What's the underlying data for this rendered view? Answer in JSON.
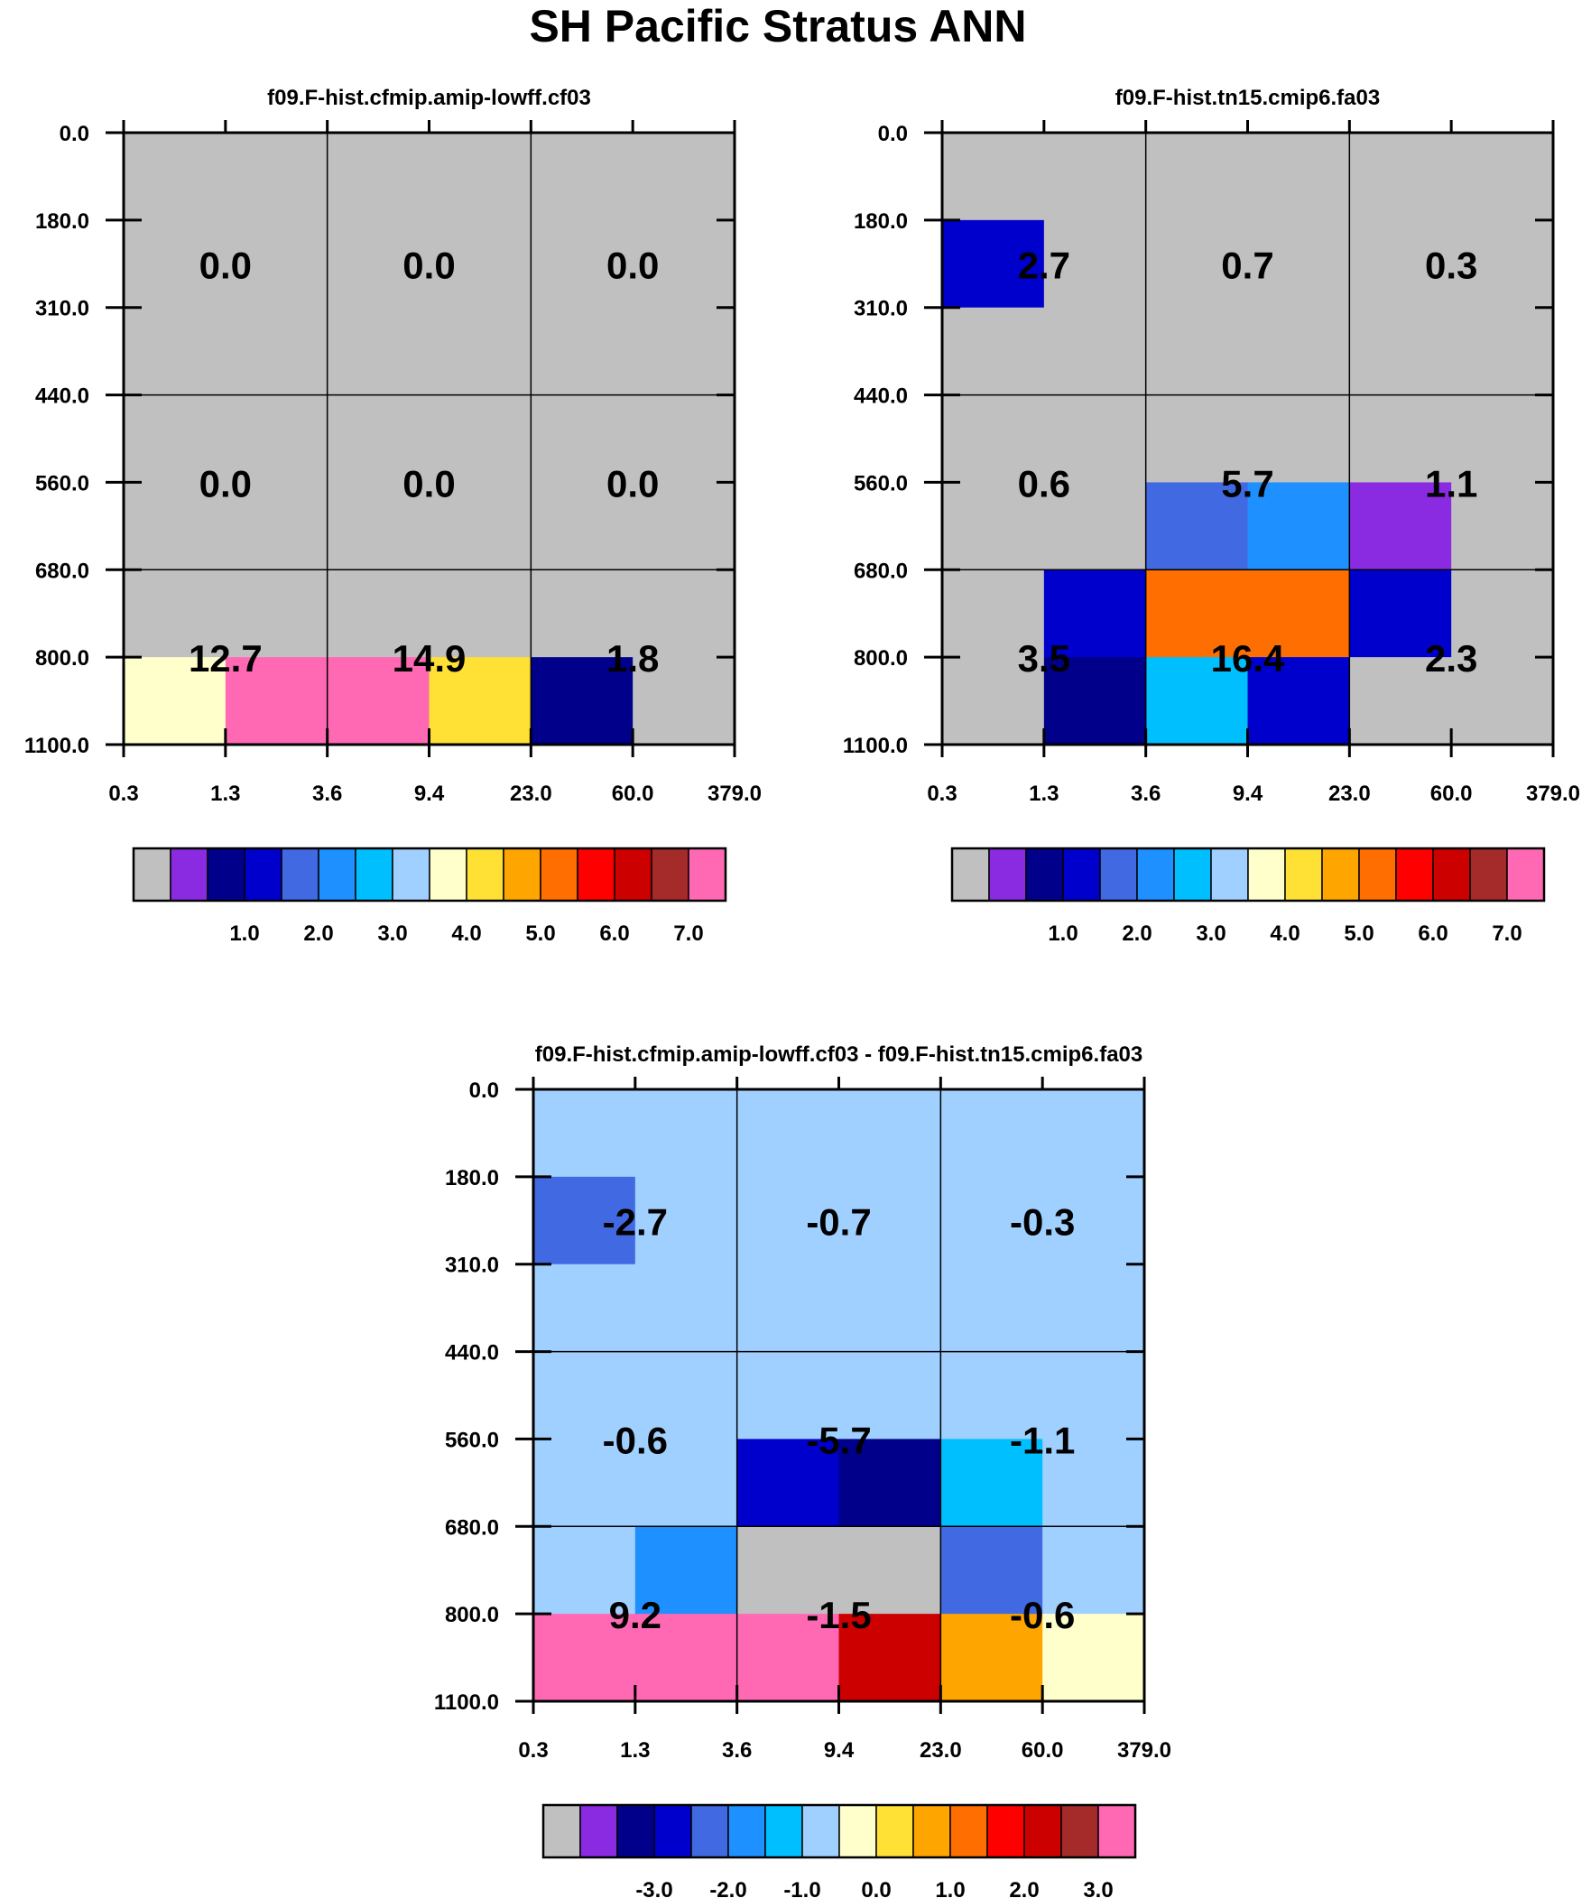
{
  "figure": {
    "title": "SH Pacific Stratus ANN"
  },
  "chart_data": [
    {
      "type": "heatmap",
      "title": "f09.F-hist.cfmip.amip-lowff.cf03",
      "y_ticks": [
        "0.0",
        "180.0",
        "310.0",
        "440.0",
        "560.0",
        "680.0",
        "800.0",
        "1100.0"
      ],
      "x_ticks": [
        "0.3",
        "1.3",
        "3.6",
        "9.4",
        "23.0",
        "60.0",
        "379.0"
      ],
      "cell_values": [
        [
          "0.0",
          "0.0",
          "0.0"
        ],
        [
          "0.0",
          "0.0",
          "0.0"
        ],
        [
          "12.7",
          "14.9",
          "1.8"
        ]
      ],
      "fine_color_index": [
        [
          0,
          0,
          0,
          0,
          0,
          0
        ],
        [
          0,
          0,
          0,
          0,
          0,
          0
        ],
        [
          0,
          0,
          0,
          0,
          0,
          0
        ],
        [
          0,
          0,
          0,
          0,
          0,
          0
        ],
        [
          0,
          0,
          0,
          0,
          0,
          0
        ],
        [
          0,
          0,
          0,
          0,
          0,
          0
        ],
        [
          8,
          15,
          15,
          9,
          2,
          0
        ]
      ],
      "colorbar_labels": [
        "1.0",
        "2.0",
        "3.0",
        "4.0",
        "5.0",
        "6.0",
        "7.0"
      ]
    },
    {
      "type": "heatmap",
      "title": "f09.F-hist.tn15.cmip6.fa03",
      "y_ticks": [
        "0.0",
        "180.0",
        "310.0",
        "440.0",
        "560.0",
        "680.0",
        "800.0",
        "1100.0"
      ],
      "x_ticks": [
        "0.3",
        "1.3",
        "3.6",
        "9.4",
        "23.0",
        "60.0",
        "379.0"
      ],
      "cell_values": [
        [
          "2.7",
          "0.7",
          "0.3"
        ],
        [
          "0.6",
          "5.7",
          "1.1"
        ],
        [
          "3.5",
          "16.4",
          "2.3"
        ]
      ],
      "fine_color_index": [
        [
          0,
          0,
          0,
          0,
          0,
          0
        ],
        [
          3,
          0,
          0,
          0,
          0,
          0
        ],
        [
          0,
          0,
          0,
          0,
          0,
          0
        ],
        [
          0,
          0,
          0,
          0,
          0,
          0
        ],
        [
          0,
          0,
          4,
          5,
          1,
          0
        ],
        [
          0,
          3,
          11,
          11,
          3,
          0
        ],
        [
          0,
          2,
          6,
          3,
          0,
          0
        ]
      ],
      "colorbar_labels": [
        "1.0",
        "2.0",
        "3.0",
        "4.0",
        "5.0",
        "6.0",
        "7.0"
      ]
    },
    {
      "type": "heatmap",
      "title": "f09.F-hist.cfmip.amip-lowff.cf03 - f09.F-hist.tn15.cmip6.fa03",
      "y_ticks": [
        "0.0",
        "180.0",
        "310.0",
        "440.0",
        "560.0",
        "680.0",
        "800.0",
        "1100.0"
      ],
      "x_ticks": [
        "0.3",
        "1.3",
        "3.6",
        "9.4",
        "23.0",
        "60.0",
        "379.0"
      ],
      "cell_values": [
        [
          "-2.7",
          "-0.7",
          "-0.3"
        ],
        [
          "-0.6",
          "-5.7",
          "-1.1"
        ],
        [
          "9.2",
          "-1.5",
          "-0.6"
        ]
      ],
      "fine_color_index": [
        [
          7,
          7,
          7,
          7,
          7,
          7
        ],
        [
          4,
          7,
          7,
          7,
          7,
          7
        ],
        [
          7,
          7,
          7,
          7,
          7,
          7
        ],
        [
          7,
          7,
          7,
          7,
          7,
          7
        ],
        [
          7,
          7,
          3,
          2,
          6,
          7
        ],
        [
          7,
          5,
          0,
          0,
          4,
          7
        ],
        [
          15,
          15,
          15,
          13,
          10,
          8
        ]
      ],
      "colorbar_labels": [
        "-3.0",
        "-2.0",
        "-1.0",
        "0.0",
        "1.0",
        "2.0",
        "3.0"
      ]
    }
  ],
  "palette": [
    "#c0c0c0",
    "#8a2be2",
    "#00008b",
    "#0000cd",
    "#4169e1",
    "#1e90ff",
    "#00bfff",
    "#a0d0ff",
    "#ffffcc",
    "#ffe135",
    "#ffa500",
    "#ff6e00",
    "#ff0000",
    "#cd0000",
    "#a52a2a",
    "#ff69b4"
  ]
}
